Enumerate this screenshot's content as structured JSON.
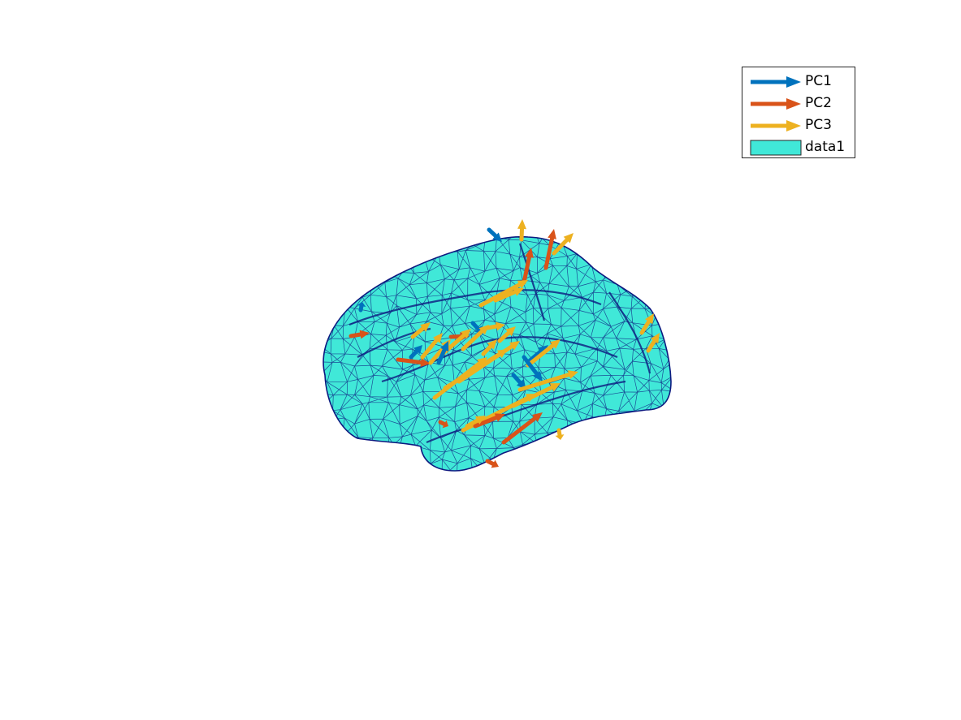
{
  "figure": {
    "description_type": "3D cortical surface mesh with principal-component direction arrows",
    "surface": {
      "face_color": "#40E8D8",
      "edge_color": "#0D1A80",
      "label": "data1"
    },
    "legend": {
      "placement": "top-right",
      "entries": [
        {
          "label": "PC1",
          "kind": "arrow",
          "color": "#0072BD"
        },
        {
          "label": "PC2",
          "kind": "arrow",
          "color": "#D95319"
        },
        {
          "label": "PC3",
          "kind": "arrow",
          "color": "#EDB120"
        },
        {
          "label": "data1",
          "kind": "patch",
          "color": "#40E8D8"
        }
      ]
    },
    "arrow_groups": [
      {
        "name": "PC1",
        "color": "#0072BD"
      },
      {
        "name": "PC2",
        "color": "#D95319"
      },
      {
        "name": "PC3",
        "color": "#EDB120"
      }
    ]
  }
}
